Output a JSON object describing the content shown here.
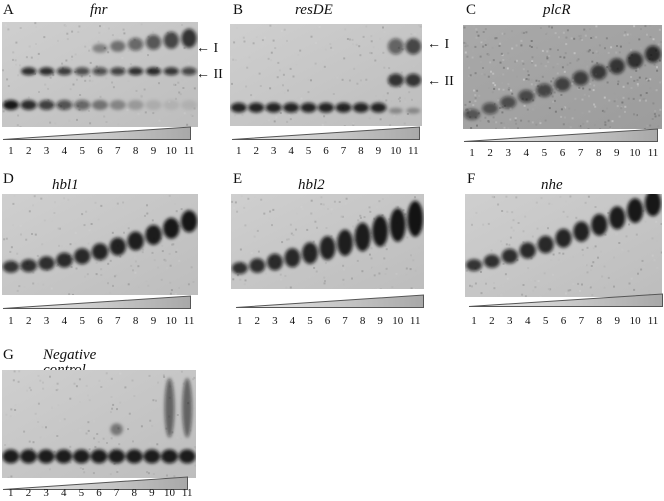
{
  "figure": {
    "panels": [
      {
        "id": "A",
        "letter": "A",
        "title": "fnr",
        "lanes": [
          "1",
          "2",
          "3",
          "4",
          "5",
          "6",
          "7",
          "8",
          "9",
          "10",
          "11"
        ],
        "band_labels": [
          "← I",
          "← II"
        ],
        "pattern": "fnr"
      },
      {
        "id": "B",
        "letter": "B",
        "title": "resDE",
        "lanes": [
          "1",
          "2",
          "3",
          "4",
          "5",
          "6",
          "7",
          "8",
          "9",
          "10",
          "11"
        ],
        "band_labels": [
          "← I",
          "← II"
        ],
        "pattern": "resde"
      },
      {
        "id": "C",
        "letter": "C",
        "title": "plcR",
        "lanes": [
          "1",
          "2",
          "3",
          "4",
          "5",
          "6",
          "7",
          "8",
          "9",
          "10",
          "11"
        ],
        "band_labels": [],
        "pattern": "plcr"
      },
      {
        "id": "D",
        "letter": "D",
        "title": "hbl1",
        "lanes": [
          "1",
          "2",
          "3",
          "4",
          "5",
          "6",
          "7",
          "8",
          "9",
          "10",
          "11"
        ],
        "band_labels": [],
        "pattern": "hbl1"
      },
      {
        "id": "E",
        "letter": "E",
        "title": "hbl2",
        "lanes": [
          "1",
          "2",
          "3",
          "4",
          "5",
          "6",
          "7",
          "8",
          "9",
          "10",
          "11"
        ],
        "band_labels": [],
        "pattern": "hbl2"
      },
      {
        "id": "F",
        "letter": "F",
        "title": "nhe",
        "lanes": [
          "1",
          "2",
          "3",
          "4",
          "5",
          "6",
          "7",
          "8",
          "9",
          "10",
          "11"
        ],
        "band_labels": [],
        "pattern": "nhe"
      },
      {
        "id": "G",
        "letter": "G",
        "title": "Negative control",
        "lanes": [
          "1",
          "2",
          "3",
          "4",
          "5",
          "6",
          "7",
          "8",
          "9",
          "10",
          "11"
        ],
        "band_labels": [],
        "pattern": "neg"
      }
    ]
  }
}
